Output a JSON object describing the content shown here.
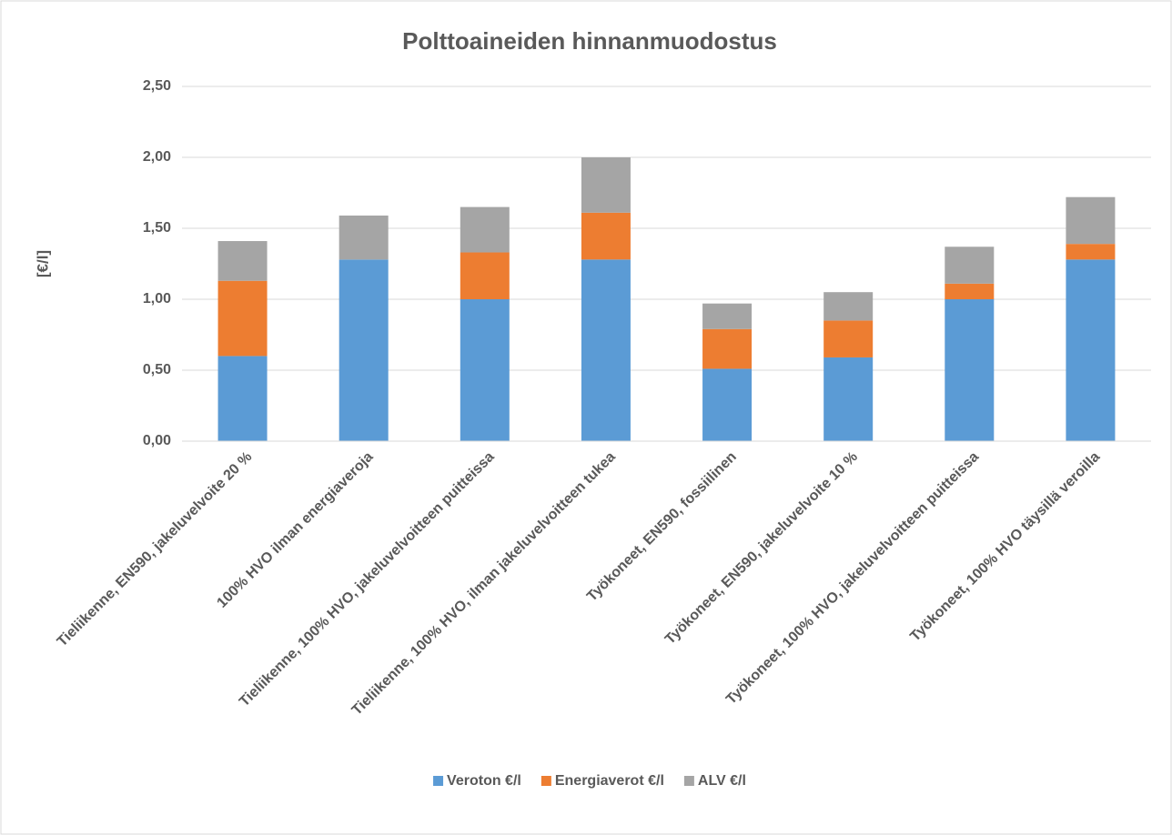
{
  "chart_data": {
    "type": "stacked_bar",
    "title": "Polttoaineiden hinnanmuodostus",
    "y_label": "[€/l]",
    "categories": [
      "Tieliikenne, EN590, jakeluvelvoite 20 %",
      "100% HVO ilman energiaveroja",
      "Tieliikenne, 100% HVO, jakeluvelvoitteen puitteissa",
      "Tieliikenne, 100% HVO, ilman jakeluvelvoitteen tukea",
      "Työkoneet, EN590, fossiilinen",
      "Työkoneet, EN590, jakeluvelvoite 10 %",
      "Työkoneet, 100% HVO, jakeluvelvoitteen puitteissa",
      "Työkoneet, 100% HVO täysillä veroilla"
    ],
    "series": [
      {
        "name": "Veroton €/l",
        "color": "#5b9bd5",
        "values": [
          0.6,
          1.28,
          1.0,
          1.28,
          0.51,
          0.59,
          1.0,
          1.28
        ]
      },
      {
        "name": "Energiaverot €/l",
        "color": "#ed7d31",
        "values": [
          0.53,
          0,
          0.33,
          0.33,
          0.28,
          0.26,
          0.11,
          0.11
        ]
      },
      {
        "name": "ALV €/l",
        "color": "#a5a5a5",
        "values": [
          0.28,
          0.31,
          0.32,
          0.39,
          0.18,
          0.2,
          0.26,
          0.33
        ]
      }
    ],
    "ylim": [
      0,
      2.5
    ],
    "yticks": [
      {
        "value": 0,
        "label": "0,00"
      },
      {
        "value": 0.5,
        "label": "0,50"
      },
      {
        "value": 1,
        "label": "1,00"
      },
      {
        "value": 1.5,
        "label": "1,50"
      },
      {
        "value": 2,
        "label": "2,00"
      },
      {
        "value": 2.5,
        "label": "2,50"
      }
    ],
    "grid": true,
    "legend": "bottom"
  }
}
